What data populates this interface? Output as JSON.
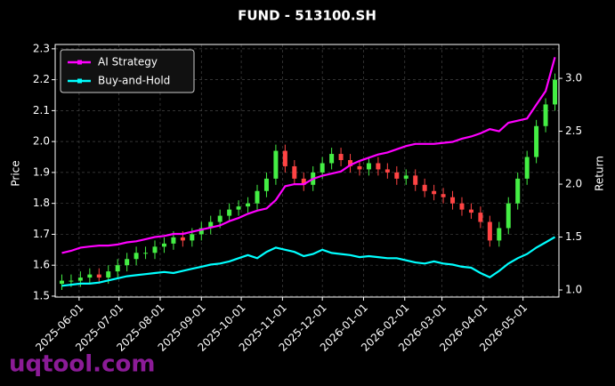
{
  "chart_data": {
    "type": "candlestick-lines",
    "title": "FUND - 513100.SH",
    "ylabel": "Price",
    "y2label": "Return",
    "watermark": "uqtool.com",
    "x": [
      "2025-05-19",
      "2025-05-26",
      "2025-06-02",
      "2025-06-09",
      "2025-06-16",
      "2025-06-23",
      "2025-06-30",
      "2025-07-07",
      "2025-07-14",
      "2025-07-21",
      "2025-07-28",
      "2025-08-04",
      "2025-08-11",
      "2025-08-18",
      "2025-08-25",
      "2025-09-01",
      "2025-09-08",
      "2025-09-15",
      "2025-09-22",
      "2025-09-29",
      "2025-10-06",
      "2025-10-13",
      "2025-10-20",
      "2025-10-27",
      "2025-11-03",
      "2025-11-10",
      "2025-11-17",
      "2025-11-24",
      "2025-12-01",
      "2025-12-08",
      "2025-12-15",
      "2025-12-22",
      "2025-12-29",
      "2026-01-05",
      "2026-01-12",
      "2026-01-19",
      "2026-01-26",
      "2026-02-02",
      "2026-02-09",
      "2026-02-16",
      "2026-02-23",
      "2026-03-02",
      "2026-03-09",
      "2026-03-16",
      "2026-03-23",
      "2026-03-30",
      "2026-04-06",
      "2026-04-13",
      "2026-04-20",
      "2026-04-27",
      "2026-05-04",
      "2026-05-11",
      "2026-05-18",
      "2026-05-25"
    ],
    "open": [
      1.54,
      1.55,
      1.55,
      1.56,
      1.57,
      1.56,
      1.58,
      1.6,
      1.62,
      1.64,
      1.64,
      1.66,
      1.67,
      1.69,
      1.68,
      1.7,
      1.72,
      1.74,
      1.76,
      1.78,
      1.79,
      1.8,
      1.84,
      1.88,
      1.97,
      1.92,
      1.88,
      1.86,
      1.9,
      1.93,
      1.96,
      1.94,
      1.92,
      1.91,
      1.93,
      1.91,
      1.9,
      1.88,
      1.89,
      1.86,
      1.84,
      1.83,
      1.82,
      1.8,
      1.78,
      1.77,
      1.74,
      1.68,
      1.72,
      1.8,
      1.88,
      1.95,
      2.05,
      2.12
    ],
    "high": [
      1.57,
      1.57,
      1.58,
      1.59,
      1.59,
      1.6,
      1.62,
      1.64,
      1.66,
      1.66,
      1.68,
      1.69,
      1.71,
      1.71,
      1.72,
      1.74,
      1.76,
      1.78,
      1.8,
      1.81,
      1.82,
      1.86,
      1.9,
      1.99,
      1.99,
      1.94,
      1.9,
      1.92,
      1.95,
      1.98,
      1.98,
      1.96,
      1.94,
      1.95,
      1.95,
      1.93,
      1.92,
      1.91,
      1.91,
      1.88,
      1.86,
      1.85,
      1.84,
      1.82,
      1.8,
      1.79,
      1.76,
      1.74,
      1.82,
      1.9,
      1.97,
      2.07,
      2.14,
      2.22
    ],
    "low": [
      1.52,
      1.53,
      1.53,
      1.54,
      1.54,
      1.54,
      1.56,
      1.58,
      1.6,
      1.62,
      1.62,
      1.64,
      1.65,
      1.66,
      1.66,
      1.68,
      1.7,
      1.72,
      1.74,
      1.76,
      1.77,
      1.78,
      1.82,
      1.86,
      1.9,
      1.86,
      1.84,
      1.84,
      1.88,
      1.91,
      1.92,
      1.9,
      1.89,
      1.89,
      1.89,
      1.88,
      1.86,
      1.86,
      1.84,
      1.82,
      1.81,
      1.8,
      1.78,
      1.76,
      1.75,
      1.72,
      1.66,
      1.66,
      1.7,
      1.78,
      1.86,
      1.93,
      2.03,
      2.1
    ],
    "close": [
      1.55,
      1.55,
      1.56,
      1.57,
      1.56,
      1.58,
      1.6,
      1.62,
      1.64,
      1.64,
      1.66,
      1.67,
      1.69,
      1.68,
      1.7,
      1.72,
      1.74,
      1.76,
      1.78,
      1.79,
      1.8,
      1.84,
      1.88,
      1.97,
      1.92,
      1.88,
      1.86,
      1.9,
      1.93,
      1.96,
      1.94,
      1.92,
      1.91,
      1.93,
      1.91,
      1.9,
      1.88,
      1.89,
      1.86,
      1.84,
      1.83,
      1.82,
      1.8,
      1.78,
      1.77,
      1.74,
      1.68,
      1.72,
      1.8,
      1.88,
      1.95,
      2.05,
      2.12,
      2.2
    ],
    "up_color": "#44ee44",
    "down_color": "#ff4444",
    "series": [
      {
        "name": "AI Strategy",
        "color": "#ff00ff",
        "axis": "y2",
        "values": [
          1.35,
          1.37,
          1.4,
          1.41,
          1.42,
          1.42,
          1.43,
          1.45,
          1.46,
          1.48,
          1.5,
          1.51,
          1.53,
          1.53,
          1.55,
          1.57,
          1.59,
          1.61,
          1.65,
          1.68,
          1.72,
          1.75,
          1.77,
          1.85,
          1.98,
          2.0,
          2.0,
          2.05,
          2.08,
          2.1,
          2.12,
          2.18,
          2.22,
          2.25,
          2.28,
          2.3,
          2.33,
          2.36,
          2.38,
          2.38,
          2.38,
          2.39,
          2.4,
          2.43,
          2.45,
          2.48,
          2.52,
          2.5,
          2.58,
          2.6,
          2.62,
          2.75,
          2.88,
          3.2
        ]
      },
      {
        "name": "Buy-and-Hold",
        "color": "#00ffff",
        "axis": "y2",
        "values": [
          1.04,
          1.05,
          1.06,
          1.06,
          1.07,
          1.09,
          1.11,
          1.13,
          1.14,
          1.15,
          1.16,
          1.17,
          1.16,
          1.18,
          1.2,
          1.22,
          1.24,
          1.25,
          1.27,
          1.3,
          1.33,
          1.3,
          1.36,
          1.4,
          1.38,
          1.36,
          1.32,
          1.34,
          1.38,
          1.35,
          1.34,
          1.33,
          1.31,
          1.32,
          1.31,
          1.3,
          1.3,
          1.28,
          1.26,
          1.25,
          1.27,
          1.25,
          1.24,
          1.22,
          1.21,
          1.16,
          1.12,
          1.18,
          1.25,
          1.3,
          1.34,
          1.4,
          1.45,
          1.5
        ]
      }
    ],
    "xlim": [
      "2025-05-14",
      "2026-05-28"
    ],
    "xticks": [
      "2025-06-01",
      "2025-07-01",
      "2025-08-01",
      "2025-09-01",
      "2025-10-01",
      "2025-11-01",
      "2025-12-01",
      "2026-01-01",
      "2026-02-01",
      "2026-03-01",
      "2026-04-01",
      "2026-05-01"
    ],
    "ylim": [
      1.497,
      2.314
    ],
    "yticks": [
      1.5,
      1.6,
      1.7,
      1.8,
      1.9,
      {
        "value": 2,
        "label": "2.0"
      },
      2.1,
      2.2,
      2.3
    ],
    "y2lim": [
      0.933,
      3.32
    ],
    "y2ticks": [
      {
        "value": 1,
        "label": "1.0"
      },
      1.5,
      {
        "value": 2,
        "label": "2.0"
      },
      2.5,
      {
        "value": 3,
        "label": "3.0"
      }
    ],
    "grid": true,
    "legend": "upper left"
  }
}
